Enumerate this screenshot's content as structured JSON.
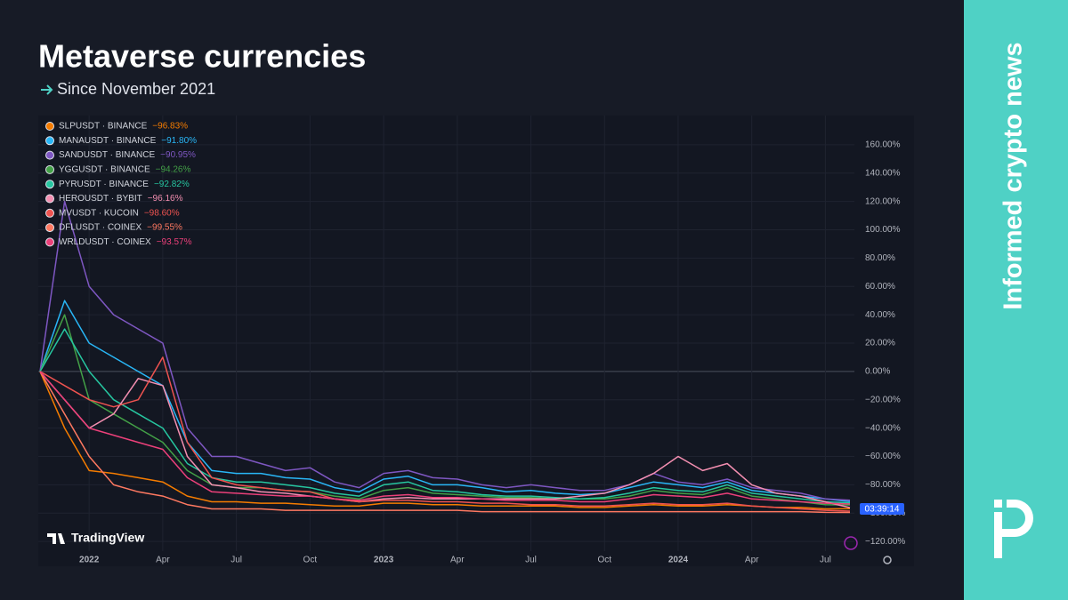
{
  "header": {
    "title": "Metaverse currencies",
    "subtitle": "Since November 2021"
  },
  "sidebar": {
    "tagline": "Informed crypto news"
  },
  "watermark": "TradingView",
  "countdown": "03:39:14",
  "chart_data": {
    "type": "line",
    "x": [
      "2021-11",
      "2021-12",
      "2022-01",
      "2022-02",
      "2022-03",
      "2022-04",
      "2022-05",
      "2022-06",
      "2022-07",
      "2022-08",
      "2022-09",
      "2022-10",
      "2022-11",
      "2022-12",
      "2023-01",
      "2023-02",
      "2023-03",
      "2023-04",
      "2023-05",
      "2023-06",
      "2023-07",
      "2023-08",
      "2023-09",
      "2023-10",
      "2023-11",
      "2023-12",
      "2024-01",
      "2024-02",
      "2024-03",
      "2024-04",
      "2024-05",
      "2024-06",
      "2024-07",
      "2024-08"
    ],
    "xlim": [
      "2021-11",
      "2024-08"
    ],
    "xticks": [
      {
        "value": "2022-01",
        "label": "2022"
      },
      {
        "value": "2022-04",
        "label": "Apr"
      },
      {
        "value": "2022-07",
        "label": "Jul"
      },
      {
        "value": "2022-10",
        "label": "Oct"
      },
      {
        "value": "2023-01",
        "label": "2023"
      },
      {
        "value": "2023-04",
        "label": "Apr"
      },
      {
        "value": "2023-07",
        "label": "Jul"
      },
      {
        "value": "2023-10",
        "label": "Oct"
      },
      {
        "value": "2024-01",
        "label": "2024"
      },
      {
        "value": "2024-04",
        "label": "Apr"
      },
      {
        "value": "2024-07",
        "label": "Jul"
      }
    ],
    "ylim": [
      -137.5,
      177.5
    ],
    "yticks": [
      {
        "value": 160,
        "label": "160.00%"
      },
      {
        "value": 140,
        "label": "140.00%"
      },
      {
        "value": 120,
        "label": "120.00%"
      },
      {
        "value": 100,
        "label": "100.00%"
      },
      {
        "value": 80,
        "label": "80.00%"
      },
      {
        "value": 60,
        "label": "60.00%"
      },
      {
        "value": 40,
        "label": "40.00%"
      },
      {
        "value": 20,
        "label": "20.00%"
      },
      {
        "value": 0,
        "label": "0.00%"
      },
      {
        "value": -20,
        "label": "−20.00%"
      },
      {
        "value": -40,
        "label": "−40.00%"
      },
      {
        "value": -60,
        "label": "−60.00%"
      },
      {
        "value": -80,
        "label": "−80.00%"
      },
      {
        "value": -100,
        "label": "−100.00%"
      },
      {
        "value": -120,
        "label": "−120.00%"
      }
    ],
    "grid": true,
    "series": [
      {
        "name": "SLPUSDT · BINANCE",
        "change": {
          "value": -96.83,
          "label": "−96.83%"
        },
        "color": "#f57c00",
        "values": [
          0,
          -40,
          -70,
          -72,
          -75,
          -78,
          -88,
          -92,
          -92,
          -93,
          -93,
          -94,
          -95,
          -95,
          -93,
          -93,
          -94,
          -94,
          -95,
          -95,
          -95,
          -95,
          -96,
          -96,
          -95,
          -94,
          -95,
          -95,
          -94,
          -95,
          -96,
          -96,
          -97,
          -96.83
        ]
      },
      {
        "name": "MANAUSDT · BINANCE",
        "change": {
          "value": -91.8,
          "label": "−91.80%"
        },
        "color": "#29b6f6",
        "values": [
          0,
          50,
          20,
          10,
          0,
          -10,
          -50,
          -70,
          -72,
          -72,
          -75,
          -76,
          -82,
          -85,
          -76,
          -74,
          -80,
          -80,
          -82,
          -85,
          -84,
          -86,
          -87,
          -86,
          -82,
          -78,
          -80,
          -82,
          -78,
          -84,
          -86,
          -88,
          -90,
          -91.8
        ]
      },
      {
        "name": "SANDUSDT · BINANCE",
        "change": {
          "value": -90.95,
          "label": "−90.95%"
        },
        "color": "#7e57c2",
        "values": [
          0,
          120,
          60,
          40,
          30,
          20,
          -40,
          -60,
          -60,
          -65,
          -70,
          -68,
          -78,
          -82,
          -72,
          -70,
          -75,
          -76,
          -80,
          -82,
          -80,
          -82,
          -84,
          -84,
          -80,
          -72,
          -78,
          -80,
          -76,
          -82,
          -84,
          -86,
          -90,
          -90.95
        ]
      },
      {
        "name": "YGGUSDT · BINANCE",
        "change": {
          "value": -94.26,
          "label": "−94.26%"
        },
        "color": "#43a047",
        "values": [
          0,
          40,
          -20,
          -30,
          -40,
          -50,
          -70,
          -80,
          -82,
          -82,
          -84,
          -85,
          -88,
          -90,
          -84,
          -82,
          -86,
          -87,
          -88,
          -89,
          -89,
          -90,
          -90,
          -90,
          -88,
          -84,
          -86,
          -87,
          -82,
          -88,
          -90,
          -92,
          -94,
          -94.26
        ]
      },
      {
        "name": "PYRUSDT · BINANCE",
        "change": {
          "value": -92.82,
          "label": "−92.82%"
        },
        "color": "#26c6a0",
        "values": [
          0,
          30,
          0,
          -20,
          -30,
          -40,
          -65,
          -75,
          -78,
          -78,
          -80,
          -82,
          -86,
          -88,
          -80,
          -78,
          -84,
          -85,
          -87,
          -88,
          -88,
          -89,
          -90,
          -89,
          -86,
          -82,
          -84,
          -85,
          -80,
          -86,
          -88,
          -90,
          -92,
          -92.82
        ]
      },
      {
        "name": "HEROUSDT · BYBIT",
        "change": {
          "value": -96.16,
          "label": "−96.16%"
        },
        "color": "#f48fb1",
        "values": [
          0,
          -20,
          -40,
          -30,
          -5,
          -10,
          -60,
          -80,
          -82,
          -85,
          -86,
          -88,
          -90,
          -92,
          -90,
          -89,
          -90,
          -90,
          -90,
          -90,
          -90,
          -90,
          -88,
          -86,
          -80,
          -72,
          -60,
          -70,
          -65,
          -80,
          -86,
          -88,
          -92,
          -96.16
        ]
      },
      {
        "name": "MVUSDT · KUCOIN",
        "change": {
          "value": -98.6,
          "label": "−98.60%"
        },
        "color": "#ef5350",
        "values": [
          0,
          -10,
          -20,
          -25,
          -20,
          10,
          -50,
          -75,
          -80,
          -82,
          -84,
          -85,
          -90,
          -92,
          -91,
          -91,
          -92,
          -92,
          -93,
          -93,
          -94,
          -94,
          -95,
          -95,
          -94,
          -93,
          -94,
          -94,
          -93,
          -95,
          -96,
          -97,
          -98,
          -98.6
        ]
      },
      {
        "name": "DFLUSDT · COINEX",
        "change": {
          "value": -99.55,
          "label": "−99.55%"
        },
        "color": "#ff7961",
        "values": [
          0,
          -30,
          -60,
          -80,
          -85,
          -88,
          -94,
          -97,
          -97,
          -97,
          -98,
          -98,
          -98,
          -98,
          -98,
          -98,
          -98,
          -98,
          -99,
          -99,
          -99,
          -99,
          -99,
          -99,
          -99,
          -99,
          -99,
          -99,
          -99,
          -99,
          -99,
          -99,
          -99.5,
          -99.55
        ]
      },
      {
        "name": "WRLDUSDT · COINEX",
        "change": {
          "value": -93.57,
          "label": "−93.57%"
        },
        "color": "#ec407a",
        "values": [
          0,
          -20,
          -40,
          -45,
          -50,
          -55,
          -75,
          -85,
          -86,
          -87,
          -88,
          -88,
          -90,
          -91,
          -88,
          -87,
          -89,
          -89,
          -90,
          -91,
          -91,
          -91,
          -92,
          -92,
          -90,
          -87,
          -88,
          -89,
          -86,
          -90,
          -91,
          -92,
          -93,
          -93.57
        ]
      }
    ]
  }
}
